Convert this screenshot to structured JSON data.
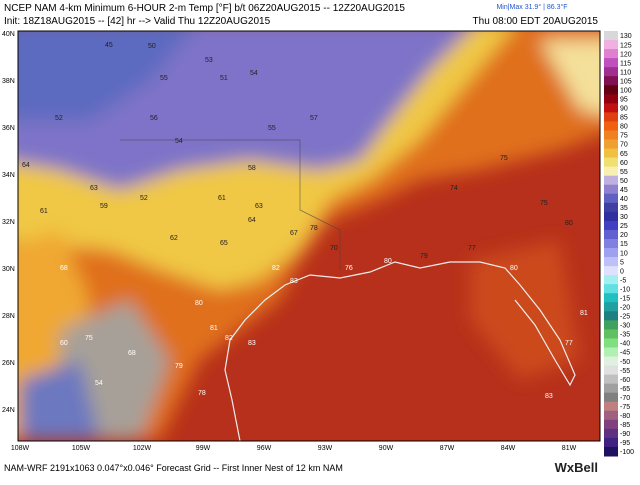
{
  "header": {
    "line1": "NCEP NAM 4-km Minimum 6-HOUR 2-m Temp [°F] b/t 06Z20AUG2015 -- 12Z20AUG2015",
    "minmax": "Min|Max 31.9° | 86.3°F",
    "line2": "Init: 18Z18AUG2015 -- [42] hr --> Valid Thu 12Z20AUG2015",
    "valid_local": "Thu 08:00 EDT 20AUG2015"
  },
  "latitudes": [
    "40N",
    "38N",
    "36N",
    "34N",
    "32N",
    "30N",
    "28N",
    "26N",
    "24N"
  ],
  "longitudes": [
    "108W",
    "105W",
    "102W",
    "99W",
    "96W",
    "93W",
    "90W",
    "87W",
    "84W",
    "81W"
  ],
  "stations": [
    "45",
    "50",
    "53",
    "51",
    "54",
    "55",
    "52",
    "56",
    "54",
    "55",
    "57",
    "64",
    "61",
    "63",
    "59",
    "52",
    "58",
    "61",
    "63",
    "62",
    "65",
    "64",
    "67",
    "70",
    "76",
    "78",
    "80",
    "79",
    "77",
    "74",
    "75",
    "75",
    "80",
    "82",
    "83",
    "80",
    "81",
    "82",
    "83",
    "68",
    "75",
    "54",
    "78",
    "83",
    "80",
    "77",
    "81",
    "79",
    "68",
    "60"
  ],
  "colorbar": [
    "130",
    "125",
    "120",
    "115",
    "110",
    "105",
    "100",
    "95",
    "90",
    "85",
    "80",
    "75",
    "70",
    "65",
    "60",
    "55",
    "50",
    "45",
    "40",
    "35",
    "30",
    "25",
    "20",
    "15",
    "10",
    "5",
    "0",
    "-5",
    "-10",
    "-15",
    "-20",
    "-25",
    "-30",
    "-35",
    "-40",
    "-45",
    "-50",
    "-55",
    "-60",
    "-65",
    "-70",
    "-75",
    "-80",
    "-85",
    "-90",
    "-95",
    "-100"
  ],
  "footer": {
    "grid": "NAM-WRF 2191x1063 0.047°x0.046° Forecast Grid -- First Inner Nest of 12 km NAM",
    "logo": "WxBell"
  }
}
